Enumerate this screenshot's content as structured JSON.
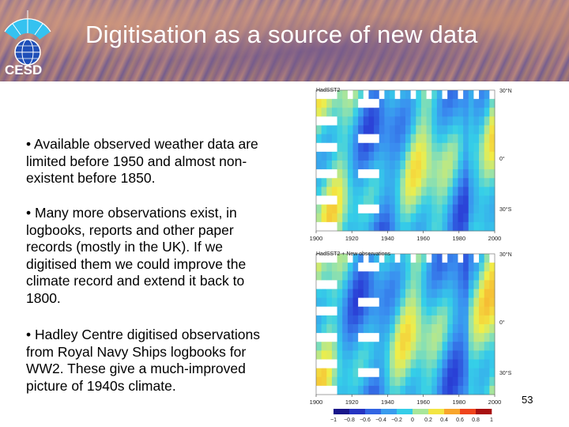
{
  "header": {
    "title": "Digitisation as a source of new data",
    "logo_text": "CESD",
    "colors": {
      "logo_blue": "#1f4fb8",
      "logo_cyan": "#35c2f0",
      "title_text": "#ffffff"
    }
  },
  "bullets": [
    "• Available observed weather data are limited before 1950 and almost non-existent before 1850.",
    "• Many more observations exist, in logbooks, reports and other paper records (mostly in the UK). If we digitised them we could improve the climate record and extend it back to 1800.",
    "• Hadley Centre digitised observations from Royal Navy Ships logbooks for WW2. These give a much-improved picture of 1940s climate."
  ],
  "chart_data": [
    {
      "type": "heatmap",
      "title": "HadSST2",
      "x": [
        1900,
        1920,
        1940,
        1960,
        1980,
        2000
      ],
      "xlim": [
        1900,
        2000
      ],
      "y_ticks": [
        "30°N",
        "0°",
        "30°S"
      ],
      "colorbar": null
    },
    {
      "type": "heatmap",
      "title": "HadSST2 + New observations",
      "x": [
        1900,
        1920,
        1940,
        1960,
        1980,
        2000
      ],
      "xlim": [
        1900,
        2000
      ],
      "y_ticks": [
        "30°N",
        "0°",
        "30°S"
      ],
      "colorbar": {
        "ticks": [
          -1,
          -0.8,
          -0.6,
          -0.4,
          -0.2,
          0,
          0.2,
          0.4,
          0.6,
          0.8,
          1
        ],
        "tick_labels": [
          "−1",
          "−0.8",
          "−0.6",
          "−0.4",
          "−0.2",
          "0",
          "0.2",
          "0.4",
          "0.6",
          "0.8",
          "1"
        ]
      }
    }
  ],
  "footer": {
    "page_number": "53"
  }
}
